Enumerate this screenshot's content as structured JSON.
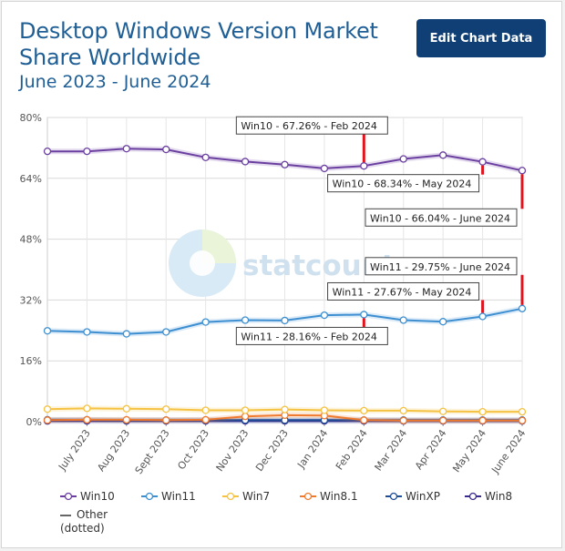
{
  "header": {
    "title": "Desktop Windows Version Market Share Worldwide",
    "subtitle": "June 2023 - June 2024",
    "edit_button_label": "Edit Chart Data"
  },
  "watermark": "statcounter",
  "chart_data": {
    "type": "line",
    "categories": [
      "June 2023",
      "July 2023",
      "Aug 2023",
      "Sept 2023",
      "Oct 2023",
      "Nov 2023",
      "Dec 2023",
      "Jan 2024",
      "Feb 2024",
      "Mar 2024",
      "Apr 2024",
      "May 2024",
      "June 2024"
    ],
    "x_tick_labels": [
      "July 2023",
      "Aug 2023",
      "Sept 2023",
      "Oct 2023",
      "Nov 2023",
      "Dec 2023",
      "Jan 2024",
      "Feb 2024",
      "Mar 2024",
      "Apr 2024",
      "May 2024",
      "June 2024"
    ],
    "ylim": [
      0,
      80
    ],
    "y_ticks": [
      0,
      16,
      32,
      48,
      64,
      80
    ],
    "y_tick_suffix": "%",
    "grid": true,
    "legend_position": "bottom",
    "series": [
      {
        "name": "Win10",
        "color": "#6a3fa0",
        "values": [
          71.1,
          71.1,
          71.8,
          71.6,
          69.5,
          68.4,
          67.6,
          66.6,
          67.26,
          69.1,
          70.1,
          68.34,
          66.04
        ]
      },
      {
        "name": "Win11",
        "color": "#3d8fd1",
        "values": [
          23.9,
          23.6,
          23.1,
          23.6,
          26.2,
          26.7,
          26.6,
          28.0,
          28.16,
          26.7,
          26.3,
          27.67,
          29.75
        ]
      },
      {
        "name": "Win7",
        "color": "#f5c242",
        "values": [
          3.3,
          3.5,
          3.4,
          3.3,
          3.0,
          3.0,
          3.2,
          3.0,
          2.9,
          2.9,
          2.7,
          2.6,
          2.6
        ]
      },
      {
        "name": "Win8.1",
        "color": "#f07b2f",
        "values": [
          0.4,
          0.5,
          0.5,
          0.4,
          0.5,
          1.4,
          1.7,
          1.6,
          0.4,
          0.3,
          0.3,
          0.3,
          0.3
        ]
      },
      {
        "name": "WinXP",
        "color": "#1f4e96",
        "values": [
          0.5,
          0.5,
          0.4,
          0.4,
          0.4,
          0.4,
          0.4,
          0.4,
          0.4,
          0.4,
          0.4,
          0.4,
          0.4
        ]
      },
      {
        "name": "Win8",
        "color": "#3a2c8f",
        "values": [
          0.2,
          0.2,
          0.2,
          0.2,
          0.2,
          0.2,
          0.2,
          0.2,
          0.2,
          0.2,
          0.2,
          0.2,
          0.2
        ]
      }
    ],
    "legend_extra": {
      "name": "Other",
      "note": "(dotted)",
      "color": "#666666"
    },
    "annotations": [
      {
        "series": "Win10",
        "index": 8,
        "text": "Win10 - 67.26% - Feb 2024",
        "placement": "above"
      },
      {
        "series": "Win10",
        "index": 11,
        "text": "Win10 - 68.34% - May 2024",
        "placement": "below"
      },
      {
        "series": "Win10",
        "index": 12,
        "text": "Win10 - 66.04% - June 2024",
        "placement": "below"
      },
      {
        "series": "Win11",
        "index": 12,
        "text": "Win11 - 29.75% - June 2024",
        "placement": "above"
      },
      {
        "series": "Win11",
        "index": 11,
        "text": "Win11 - 27.67% - May 2024",
        "placement": "above"
      },
      {
        "series": "Win11",
        "index": 8,
        "text": "Win11 - 28.16% - Feb 2024",
        "placement": "below"
      }
    ]
  }
}
